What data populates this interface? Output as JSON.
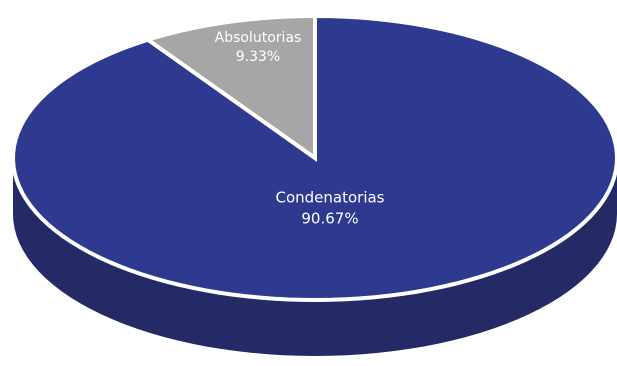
{
  "chart_data": {
    "type": "pie",
    "style": "3d",
    "categories": [
      "Condenatorias",
      "Absolutorias"
    ],
    "values": [
      90.67,
      9.33
    ],
    "value_labels": [
      "90.67%",
      "9.33%"
    ],
    "unit": "%",
    "colors": {
      "Condenatorias": "#2e3a8f",
      "Condenatorias_side": "#232a65",
      "Absolutorias": "#a6a6a6",
      "Absolutorias_side": "#7a7a7a",
      "separator": "#ffffff"
    },
    "legend": "none",
    "title": ""
  }
}
